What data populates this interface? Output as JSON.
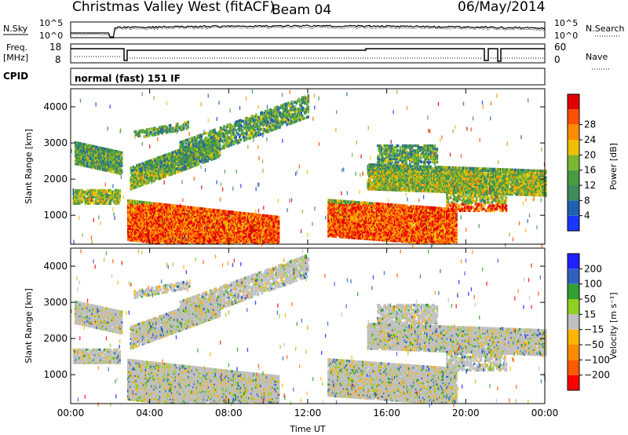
{
  "header": {
    "station": "Christmas Valley West (fitACF)",
    "beam": "Beam 04",
    "date": "06/May/2014"
  },
  "panels": {
    "nsky_label": "N.Sky",
    "nsearch_label": "N.Search",
    "nsky_ticks": [
      "10^5",
      "10^0"
    ],
    "freq_label_1": "Freq.",
    "freq_label_2": "[MHz]",
    "freq_ticks": [
      "18",
      "8"
    ],
    "nave_label": "Nave",
    "nave_ticks": [
      "60",
      "0"
    ],
    "cpid_label": "CPID",
    "cpid_text": "normal (fast) 151 IF"
  },
  "colors": {
    "power": [
      "#1a36ff",
      "#2060b0",
      "#3d8a5a",
      "#4a9a40",
      "#7ab830",
      "#f0c000",
      "#ff8c00",
      "#ff5000",
      "#e00000"
    ],
    "velocity": [
      "#ff0000",
      "#ff5a00",
      "#ff8c00",
      "#ffb400",
      "#c0c0c0",
      "#90d020",
      "#30a030",
      "#3060c0",
      "#2020ff"
    ]
  },
  "chart_data": [
    {
      "type": "heatmap",
      "name": "power",
      "xlabel": "",
      "ylabel": "Slant Range [km]",
      "x_ticks": [
        "00:00",
        "04:00",
        "08:00",
        "12:00",
        "16:00",
        "20:00",
        "00:00"
      ],
      "y_ticks": [
        "1000",
        "2000",
        "3000",
        "4000"
      ],
      "ylim": [
        200,
        4500
      ],
      "colorbar_label": "Power [dB]",
      "colorbar_ticks": [
        "4",
        "8",
        "12",
        "16",
        "20",
        "24",
        "28"
      ]
    },
    {
      "type": "heatmap",
      "name": "velocity",
      "xlabel": "Time UT",
      "ylabel": "Slant Range [km]",
      "x_ticks": [
        "00:00",
        "04:00",
        "08:00",
        "12:00",
        "16:00",
        "20:00",
        "00:00"
      ],
      "y_ticks": [
        "1000",
        "2000",
        "3000",
        "4000"
      ],
      "ylim": [
        200,
        4500
      ],
      "colorbar_label": "Velocity [m s⁻¹]",
      "colorbar_ticks": [
        "200",
        "100",
        "50",
        "15",
        "−15",
        "−50",
        "−100",
        "−200"
      ]
    }
  ]
}
